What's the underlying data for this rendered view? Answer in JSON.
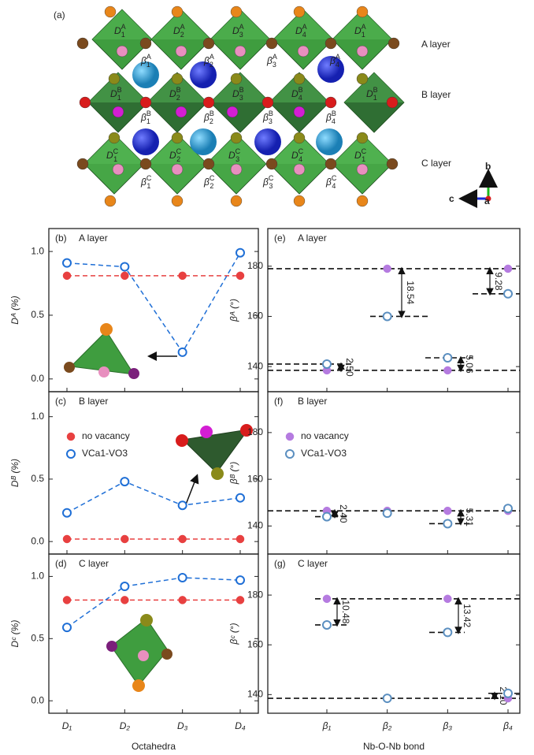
{
  "structure": {
    "label": "(a)",
    "layers": [
      "A layer",
      "B layer",
      "C layer"
    ],
    "rows": [
      {
        "octahedra": [
          {
            "t": "D",
            "sub": "1",
            "sup": "A"
          },
          {
            "t": "D",
            "sub": "2",
            "sup": "A"
          },
          {
            "t": "D",
            "sub": "3",
            "sup": "A"
          },
          {
            "t": "D",
            "sub": "4",
            "sup": "A"
          },
          {
            "t": "D",
            "sub": "1",
            "sup": "A"
          }
        ],
        "bonds": [
          {
            "t": "β",
            "sub": "1",
            "sup": "A"
          },
          {
            "t": "β",
            "sub": "2",
            "sup": "A"
          },
          {
            "t": "β",
            "sub": "3",
            "sup": "A"
          },
          {
            "t": "β",
            "sub": "4",
            "sup": "A"
          }
        ]
      },
      {
        "octahedra": [
          {
            "t": "D",
            "sub": "1",
            "sup": "B"
          },
          {
            "t": "D",
            "sub": "2",
            "sup": "B"
          },
          {
            "t": "D",
            "sub": "3",
            "sup": "B"
          },
          {
            "t": "D",
            "sub": "4",
            "sup": "B"
          },
          {
            "t": "D",
            "sub": "1",
            "sup": "B"
          }
        ],
        "bonds": [
          {
            "t": "β",
            "sub": "1",
            "sup": "B"
          },
          {
            "t": "β",
            "sub": "2",
            "sup": "B"
          },
          {
            "t": "β",
            "sub": "3",
            "sup": "B"
          },
          {
            "t": "β",
            "sub": "4",
            "sup": "B"
          }
        ]
      },
      {
        "octahedra": [
          {
            "t": "D",
            "sub": "1",
            "sup": "C"
          },
          {
            "t": "D",
            "sub": "2",
            "sup": "C"
          },
          {
            "t": "D",
            "sub": "3",
            "sup": "C"
          },
          {
            "t": "D",
            "sub": "4",
            "sup": "C"
          },
          {
            "t": "D",
            "sub": "1",
            "sup": "C"
          }
        ],
        "bonds": [
          {
            "t": "β",
            "sub": "1",
            "sup": "C"
          },
          {
            "t": "β",
            "sub": "2",
            "sup": "C"
          },
          {
            "t": "β",
            "sub": "3",
            "sup": "C"
          },
          {
            "t": "β",
            "sub": "4",
            "sup": "C"
          }
        ]
      }
    ],
    "axes": [
      "b",
      "c",
      "a"
    ]
  },
  "chart_data": [
    {
      "type": "line",
      "label": "(b)",
      "title": "A layer",
      "ylabel": "Dᴬ (%)",
      "ylim": [
        -0.1,
        1.18
      ],
      "yticks": [
        {
          "value": 0,
          "label": "0.0"
        },
        0.5,
        {
          "value": 1,
          "label": "1.0"
        }
      ],
      "series": [
        {
          "color": "#e84040",
          "marker": "filled",
          "values": [
            0.81,
            0.81,
            0.81,
            0.81
          ]
        },
        {
          "color": "#1f6fd6",
          "marker": "open",
          "values": [
            0.91,
            0.88,
            0.21,
            0.99
          ]
        }
      ]
    },
    {
      "type": "line",
      "label": "(c)",
      "title": "B layer",
      "ylabel": "Dᴮ (%)",
      "ylim": [
        -0.1,
        1.2
      ],
      "yticks": [
        {
          "value": 0,
          "label": "0.0"
        },
        0.5,
        {
          "value": 1,
          "label": "1.0"
        }
      ],
      "legend": true,
      "series": [
        {
          "name": "no vacancy",
          "color": "#e84040",
          "marker": "filled",
          "values": [
            0.02,
            0.02,
            0.02,
            0.02
          ]
        },
        {
          "name": "VCa1-VO3",
          "color": "#1f6fd6",
          "marker": "open",
          "values": [
            0.23,
            0.48,
            0.29,
            0.35
          ]
        }
      ]
    },
    {
      "type": "line",
      "label": "(d)",
      "title": "C layer",
      "ylabel": "Dᶜ (%)",
      "ylim": [
        -0.1,
        1.18
      ],
      "yticks": [
        {
          "value": 0,
          "label": "0.0"
        },
        0.5,
        {
          "value": 1,
          "label": "1.0"
        }
      ],
      "categories": [
        "D₁",
        "D₂",
        "D₃",
        "D₄"
      ],
      "xlabel": "Octahedra",
      "series": [
        {
          "color": "#e84040",
          "marker": "filled",
          "values": [
            0.81,
            0.81,
            0.81,
            0.81
          ]
        },
        {
          "color": "#1f6fd6",
          "marker": "open",
          "values": [
            0.59,
            0.92,
            0.99,
            0.97
          ]
        }
      ]
    },
    {
      "type": "scatter",
      "label": "(e)",
      "title": "A layer",
      "ylabel": "βᴬ (°)",
      "ylim": [
        130,
        195
      ],
      "yticks": [
        140,
        160,
        180
      ],
      "annotations": [
        "2.50",
        "18.54",
        "5.06",
        "9.28"
      ],
      "series": [
        {
          "color": "#b57be0",
          "marker": "filled",
          "values": [
            138.5,
            179,
            138.5,
            179
          ]
        },
        {
          "color": "#5b8fc0",
          "marker": "open",
          "values": [
            141,
            160,
            143.5,
            169
          ]
        }
      ]
    },
    {
      "type": "scatter",
      "label": "(f)",
      "title": "B layer",
      "ylabel": "βᴮ (°)",
      "ylim": [
        128,
        197.5
      ],
      "yticks": [
        140,
        160,
        180
      ],
      "legend": true,
      "annotations": [
        "2.40",
        "5.31"
      ],
      "series": [
        {
          "name": "no vacancy",
          "color": "#b57be0",
          "marker": "filled",
          "values": [
            146.5,
            146.5,
            146.5,
            146.5
          ]
        },
        {
          "name": "VCa1-VO3",
          "color": "#5b8fc0",
          "marker": "open",
          "values": [
            144,
            145.5,
            141,
            147.5
          ]
        }
      ]
    },
    {
      "type": "scatter",
      "label": "(g)",
      "title": "C layer",
      "ylabel": "βᶜ (°)",
      "ylim": [
        132.5,
        196.5
      ],
      "yticks": [
        140,
        160,
        180
      ],
      "categories": [
        "β₁",
        "β₂",
        "β₃",
        "β₄"
      ],
      "xlabel": "Nb-O-Nb bond",
      "annotations": [
        "10.48",
        "13.42",
        "2.10"
      ],
      "series": [
        {
          "color": "#b57be0",
          "marker": "filled",
          "values": [
            178.5,
            138.5,
            178.5,
            138.5
          ]
        },
        {
          "color": "#5b8fc0",
          "marker": "open",
          "values": [
            168,
            138.5,
            165,
            140.5
          ]
        }
      ]
    }
  ]
}
